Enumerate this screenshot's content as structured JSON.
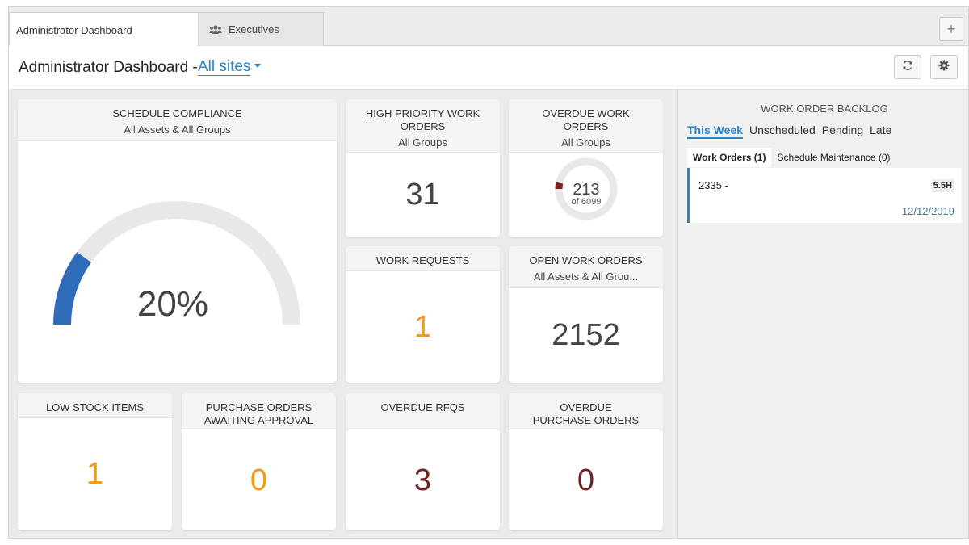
{
  "tabs": [
    {
      "label": "Administrator Dashboard",
      "active": true
    },
    {
      "label": "Executives",
      "icon": "users-icon",
      "active": false
    }
  ],
  "add_tab_label": "+",
  "header": {
    "title": "Administrator Dashboard -",
    "site_selector": "All sites"
  },
  "widgets": {
    "schedule_compliance": {
      "title": "SCHEDULE COMPLIANCE",
      "subtitle": "All Assets & All Groups",
      "value": "20%",
      "percent": 20
    },
    "high_priority": {
      "title": "HIGH PRIORITY WORK ORDERS",
      "subtitle": "All Groups",
      "value": "31"
    },
    "overdue_wo": {
      "title": "OVERDUE WORK ORDERS",
      "subtitle": "All Groups",
      "value": "213",
      "total": "of 6099",
      "fraction": 0.035
    },
    "work_requests": {
      "title": "WORK REQUESTS",
      "value": "1"
    },
    "open_wo": {
      "title": "OPEN WORK ORDERS",
      "subtitle": "All Assets & All Grou...",
      "value": "2152"
    },
    "low_stock": {
      "title": "LOW STOCK ITEMS",
      "value": "1"
    },
    "po_awaiting": {
      "title": "PURCHASE ORDERS AWAITING APPROVAL",
      "value": "0"
    },
    "overdue_rfqs": {
      "title": "OVERDUE RFQS",
      "value": "3"
    },
    "overdue_po": {
      "title": "OVERDUE PURCHASE ORDERS",
      "value": "0"
    }
  },
  "backlog": {
    "title": "WORK ORDER BACKLOG",
    "tabs": [
      "This Week",
      "Unscheduled",
      "Pending",
      "Late"
    ],
    "sub_tabs": [
      "Work Orders (1)",
      "Schedule Maintenance (0)"
    ],
    "items": [
      {
        "id": "2335 -",
        "hours": "5.5H",
        "date": "12/12/2019"
      }
    ]
  },
  "colors": {
    "accent": "#2a86c8",
    "gauge_fill": "#2e6bb8",
    "orange": "#f09a17",
    "maroon": "#6e2424"
  }
}
